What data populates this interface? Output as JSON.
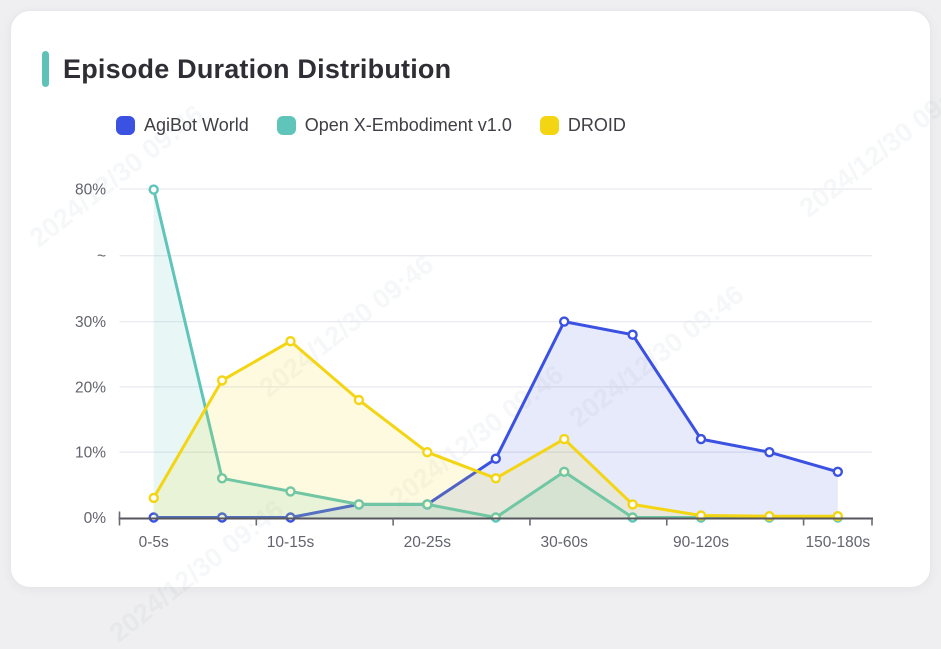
{
  "card": {
    "title": "Episode Duration Distribution",
    "accent_color": "#5fc1b7"
  },
  "watermark": {
    "text": "2024/12/30 09:46"
  },
  "chart_data": {
    "type": "line",
    "title": "Episode Duration Distribution",
    "x_tick_labels": [
      "0-5s",
      "",
      "10-15s",
      "",
      "20-25s",
      "",
      "30-60s",
      "",
      "90-120s",
      "",
      "150-180s"
    ],
    "y_axis": {
      "tick_labels": [
        "0%",
        "10%",
        "20%",
        "30%",
        "~",
        "80%"
      ],
      "unit": "percent",
      "range": [
        0,
        80
      ],
      "break_between": [
        30,
        80
      ]
    },
    "grid": true,
    "legend_position": "top",
    "marker_fill": "#ffffff",
    "series": [
      {
        "name": "AgiBot World",
        "color": "#3a51e1",
        "fill_opacity": 0.12,
        "values": [
          0,
          0,
          0,
          2,
          2,
          9,
          30,
          28,
          12,
          10,
          7
        ]
      },
      {
        "name": "Open X-Embodiment v1.0",
        "color": "#5fc5ba",
        "fill_opacity": 0.14,
        "values": [
          79.5,
          6,
          4,
          2,
          2,
          0,
          7,
          0,
          0,
          0,
          0
        ]
      },
      {
        "name": "DROID",
        "color": "#f3d513",
        "fill_opacity": 0.13,
        "values": [
          3,
          21,
          27,
          18,
          10,
          6,
          12,
          2,
          0.3,
          0.2,
          0.2
        ]
      }
    ]
  }
}
